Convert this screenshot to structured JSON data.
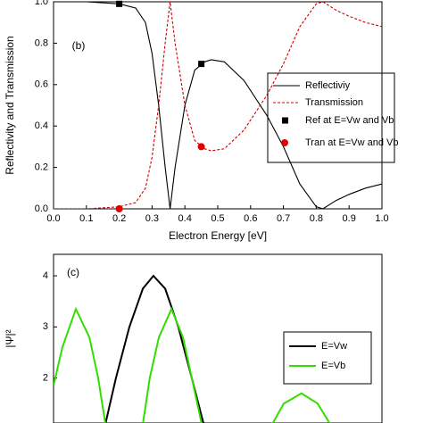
{
  "chart_data": [
    {
      "type": "line",
      "y_label": "Reflectivity and Transmission",
      "x_label": "Electron Energy [eV]",
      "annotation": "(b)",
      "xlim": [
        0,
        1
      ],
      "ylim": [
        0,
        1
      ],
      "xticks": [
        {
          "value": 0,
          "label": "0.0"
        },
        0.1,
        0.2,
        0.3,
        0.4,
        0.5,
        0.6,
        0.7,
        0.8,
        0.9,
        {
          "value": 1,
          "label": "1.0"
        }
      ],
      "yticks": [
        {
          "value": 0,
          "label": "0.0"
        },
        0.2,
        0.4,
        0.6,
        0.8,
        {
          "value": 1,
          "label": "1.0"
        }
      ],
      "legend": "upper right",
      "series": [
        {
          "name": "Reflectiviy",
          "color": "#000000",
          "style": "solid",
          "x": [
            0,
            0.1,
            0.2,
            0.25,
            0.28,
            0.3,
            0.32,
            0.34,
            0.355,
            0.37,
            0.4,
            0.43,
            0.46,
            0.48,
            0.52,
            0.58,
            0.65,
            0.7,
            0.75,
            0.8,
            0.82,
            0.86,
            0.9,
            0.95,
            1.0
          ],
          "values": [
            1.0,
            1.0,
            0.99,
            0.97,
            0.9,
            0.75,
            0.5,
            0.2,
            0.0,
            0.2,
            0.5,
            0.67,
            0.71,
            0.72,
            0.71,
            0.62,
            0.45,
            0.3,
            0.12,
            0.01,
            0.0,
            0.04,
            0.07,
            0.1,
            0.12
          ]
        },
        {
          "name": "Transmission",
          "color": "#cc0000",
          "style": "dotted",
          "x": [
            0,
            0.1,
            0.2,
            0.25,
            0.28,
            0.3,
            0.32,
            0.34,
            0.355,
            0.37,
            0.4,
            0.43,
            0.46,
            0.48,
            0.52,
            0.58,
            0.65,
            0.7,
            0.75,
            0.8,
            0.82,
            0.86,
            0.9,
            0.95,
            1.0
          ],
          "values": [
            0.0,
            0.0,
            0.01,
            0.03,
            0.1,
            0.25,
            0.5,
            0.8,
            1.0,
            0.8,
            0.5,
            0.33,
            0.29,
            0.28,
            0.29,
            0.38,
            0.55,
            0.7,
            0.88,
            0.99,
            1.0,
            0.96,
            0.93,
            0.9,
            0.88
          ]
        },
        {
          "name": "Ref at E=Vw and Vb",
          "color": "#000000",
          "style": "square",
          "x": [
            0.2,
            0.45
          ],
          "values": [
            0.99,
            0.7
          ]
        },
        {
          "name": "Tran at E=Vw and Vb",
          "color": "#dd0000",
          "style": "circle",
          "x": [
            0.2,
            0.45
          ],
          "values": [
            0.0,
            0.3
          ]
        }
      ]
    },
    {
      "type": "line",
      "y_label": "|Ψ|²",
      "annotation": "(c)",
      "xlim": [
        0,
        10
      ],
      "ylim": [
        1.12,
        4.42
      ],
      "yticks": [
        2,
        3,
        4
      ],
      "legend": "center right",
      "series": [
        {
          "name": "E=Vw",
          "color": "#000000",
          "style": "solid",
          "x": [
            1.58,
            1.9,
            2.31,
            2.72,
            3.04,
            3.4,
            3.8,
            4.21,
            4.57
          ],
          "values": [
            1.1,
            2.0,
            3.0,
            3.75,
            4.0,
            3.75,
            3.0,
            2.0,
            1.1
          ]
        },
        {
          "name": "E=Vb",
          "color": "#33dd00",
          "style": "solid",
          "x": [
            0,
            0.27,
            0.68,
            1.09,
            1.36,
            1.58,
            null,
            2.72,
            2.93,
            3.21,
            3.59,
            3.94,
            4.21,
            4.51,
            null,
            6.66,
            7.01,
            7.55,
            8.04,
            8.42
          ],
          "values": [
            1.85,
            2.6,
            3.35,
            2.8,
            2.0,
            1.1,
            null,
            1.1,
            2.0,
            2.8,
            3.35,
            2.8,
            2.0,
            1.1,
            null,
            1.1,
            1.5,
            1.7,
            1.5,
            1.1
          ]
        }
      ]
    }
  ]
}
